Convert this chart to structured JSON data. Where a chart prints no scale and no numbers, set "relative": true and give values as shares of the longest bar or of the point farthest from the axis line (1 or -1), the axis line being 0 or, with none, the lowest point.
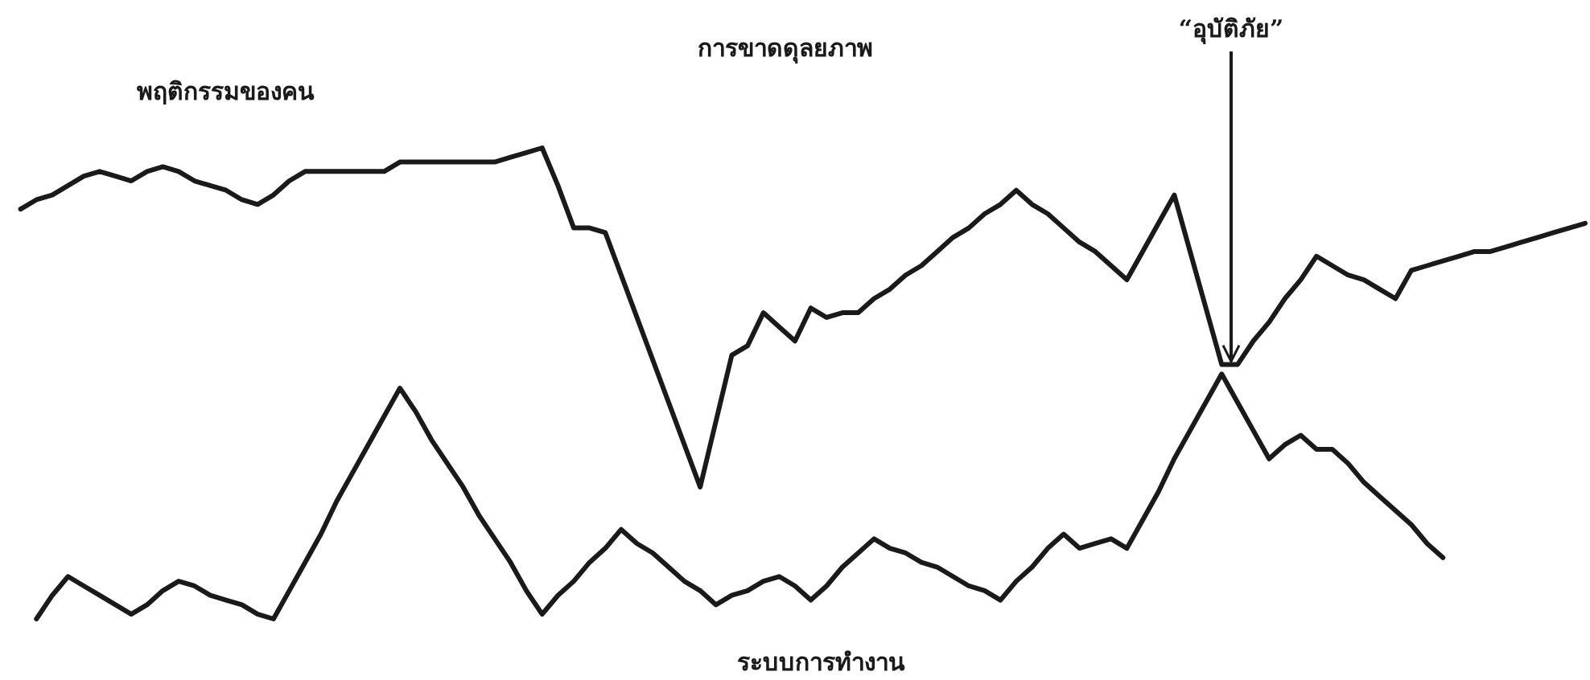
{
  "chart_data": {
    "type": "line",
    "relative": true,
    "grid": false,
    "legend": false,
    "marker": "none",
    "line_style": "solid",
    "annotations": [
      "การขาดดุลยภาพ",
      {
        "text": "“อุบัติภัย”",
        "y": 0.54
      }
    ],
    "categories": [
      null,
      null,
      null,
      null,
      null,
      null,
      null,
      null,
      null,
      null,
      null,
      null,
      null,
      null,
      null,
      null,
      null,
      null,
      null,
      null,
      null,
      null,
      null,
      null,
      null,
      null,
      null,
      null,
      null,
      null,
      null,
      null,
      null,
      null,
      null,
      null,
      null,
      null,
      null,
      null,
      null,
      null,
      null,
      null,
      null,
      null,
      null,
      null,
      null,
      null,
      null,
      null,
      null,
      null,
      null,
      null,
      null,
      null,
      null,
      null,
      null,
      null,
      null,
      null,
      null,
      null,
      null,
      null,
      null,
      null,
      null,
      null,
      null,
      null,
      null,
      null,
      null,
      null,
      null,
      null,
      null,
      null,
      null,
      null,
      null,
      null,
      null,
      null,
      null,
      null,
      null,
      null,
      null,
      null,
      null,
      null,
      null,
      null,
      null,
      null,
      null
    ],
    "series": [
      {
        "name": "พฤติกรรมของคน",
        "color": "#1a1a1a",
        "values": [
          null,
          0.87,
          0.89,
          0.9,
          0.92,
          0.94,
          0.95,
          0.94,
          0.93,
          0.95,
          0.96,
          0.95,
          0.93,
          0.92,
          0.91,
          0.89,
          0.88,
          0.9,
          0.93,
          0.95,
          0.95,
          0.95,
          0.95,
          0.95,
          0.95,
          0.97,
          0.97,
          0.97,
          0.97,
          0.97,
          0.97,
          0.97,
          0.98,
          0.99,
          1.0,
          0.92,
          0.83,
          0.83,
          0.82,
          0.73,
          0.64,
          0.55,
          0.46,
          0.37,
          0.28,
          0.42,
          0.56,
          0.58,
          0.65,
          0.62,
          0.59,
          0.66,
          0.64,
          0.65,
          0.65,
          0.68,
          0.7,
          0.73,
          0.75,
          0.78,
          0.81,
          0.83,
          0.86,
          0.88,
          0.91,
          0.88,
          0.86,
          0.83,
          0.8,
          0.78,
          0.75,
          0.72,
          0.78,
          0.84,
          0.9,
          0.78,
          0.66,
          0.54,
          0.54,
          0.59,
          0.63,
          0.68,
          0.72,
          0.77,
          0.75,
          0.73,
          0.72,
          0.7,
          0.68,
          0.74,
          0.75,
          0.76,
          0.77,
          0.78,
          0.78,
          0.79,
          0.8,
          0.81,
          0.82,
          0.83,
          0.84
        ]
      },
      {
        "name": "ระบบการทำงาน",
        "color": "#1a1a1a",
        "values": [
          null,
          null,
          0.0,
          0.05,
          0.09,
          0.07,
          0.05,
          0.03,
          0.01,
          0.03,
          0.06,
          0.08,
          0.07,
          0.05,
          0.04,
          0.03,
          0.01,
          0.0,
          0.06,
          0.12,
          0.18,
          0.25,
          0.31,
          0.37,
          0.43,
          0.49,
          0.44,
          0.38,
          0.33,
          0.28,
          0.22,
          0.17,
          0.12,
          0.06,
          0.01,
          0.05,
          0.08,
          0.12,
          0.15,
          0.19,
          0.16,
          0.14,
          0.11,
          0.08,
          0.06,
          0.03,
          0.05,
          0.06,
          0.08,
          0.09,
          0.07,
          0.04,
          0.07,
          0.11,
          0.14,
          0.17,
          0.15,
          0.14,
          0.12,
          0.11,
          0.09,
          0.07,
          0.06,
          0.04,
          0.08,
          0.11,
          0.15,
          0.18,
          0.15,
          0.16,
          0.17,
          0.15,
          0.21,
          0.27,
          0.34,
          0.4,
          0.46,
          0.52,
          0.46,
          0.4,
          0.34,
          0.37,
          0.39,
          0.36,
          0.36,
          0.33,
          0.29,
          0.26,
          0.23,
          0.2,
          0.16,
          0.13,
          null,
          null,
          null,
          null,
          null,
          null,
          null,
          null,
          null
        ]
      }
    ]
  }
}
